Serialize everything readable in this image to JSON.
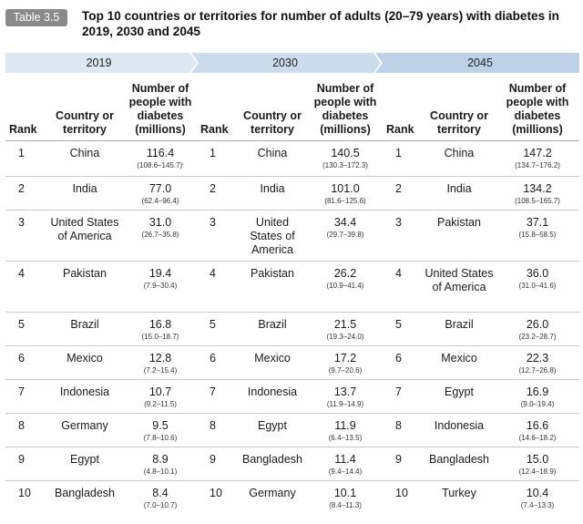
{
  "table_tag": "Table 3.5",
  "title": "Top 10 countries or territories for number of adults (20–79 years) with diabetes in 2019, 2030 and 2045",
  "colors": {
    "band_1": "#dde8f2",
    "band_2": "#cddcec",
    "band_3": "#bdd1e7",
    "tag_bg": "#8a8a8a"
  },
  "years": [
    "2019",
    "2030",
    "2045"
  ],
  "headers": {
    "rank": "Rank",
    "country": "Country or territory",
    "number": "Number of people with diabetes (millions)"
  },
  "rows": [
    {
      "rank": "1",
      "c2019": "China",
      "v2019": "116.4",
      "ci2019": "(108.6–145.7)ⁱ",
      "c2030": "China",
      "v2030": "140.5",
      "ci2030": "(130.3–172.3)",
      "c2045": "China",
      "v2045": "147.2",
      "ci2045": "(134.7–176.2)"
    },
    {
      "rank": "2",
      "c2019": "India",
      "v2019": "77.0",
      "ci2019": "(62.4–96.4)",
      "c2030": "India",
      "v2030": "101.0",
      "ci2030": "(81.6–125.6)",
      "c2045": "India",
      "v2045": "134.2",
      "ci2045": "(108.5–165.7)"
    },
    {
      "rank": "3",
      "c2019": "United States of America",
      "v2019": "31.0",
      "ci2019": "(26.7–35.8)",
      "c2030": "United States of America",
      "v2030": "34.4",
      "ci2030": "(29.7–39.8)",
      "c2045": "Pakistan",
      "v2045": "37.1",
      "ci2045": "(15.8–58.5)"
    },
    {
      "rank": "4",
      "c2019": "Pakistan",
      "v2019": "19.4",
      "ci2019": "(7.9–30.4)",
      "c2030": "Pakistan",
      "v2030": "26.2",
      "ci2030": "(10.9–41.4)",
      "c2045": "United States of America",
      "v2045": "36.0",
      "ci2045": "(31.0–41.6)"
    },
    {
      "rank": "5",
      "c2019": "Brazil",
      "v2019": "16.8",
      "ci2019": "(15.0–18.7)",
      "c2030": "Brazil",
      "v2030": "21.5",
      "ci2030": "(19.3–24.0)",
      "c2045": "Brazil",
      "v2045": "26.0",
      "ci2045": "(23.2–28.7)"
    },
    {
      "rank": "6",
      "c2019": "Mexico",
      "v2019": "12.8",
      "ci2019": "(7.2–15.4)",
      "c2030": "Mexico",
      "v2030": "17.2",
      "ci2030": "(9.7–20.6)",
      "c2045": "Mexico",
      "v2045": "22.3",
      "ci2045": "(12.7–26.8)"
    },
    {
      "rank": "7",
      "c2019": "Indonesia",
      "v2019": "10.7",
      "ci2019": "(9.2–11.5)",
      "c2030": "Indonesia",
      "v2030": "13.7",
      "ci2030": "(11.9–14.9)",
      "c2045": "Egypt",
      "v2045": "16.9",
      "ci2045": "(9.0–19.4)"
    },
    {
      "rank": "8",
      "c2019": "Germany",
      "v2019": "9.5",
      "ci2019": "(7.8–10.6)",
      "c2030": "Egypt",
      "v2030": "11.9",
      "ci2030": "(6.4–13.5)",
      "c2045": "Indonesia",
      "v2045": "16.6",
      "ci2045": "(14.6–18.2)"
    },
    {
      "rank": "9",
      "c2019": "Egypt",
      "v2019": "8.9",
      "ci2019": "(4.8–10.1)",
      "c2030": "Bangladesh",
      "v2030": "11.4",
      "ci2030": "(9.4–14.4)",
      "c2045": "Bangladesh",
      "v2045": "15.0",
      "ci2045": "(12.4–18.9)"
    },
    {
      "rank": "10",
      "c2019": "Bangladesh",
      "v2019": "8.4",
      "ci2019": "(7.0–10.7)",
      "c2030": "Germany",
      "v2030": "10.1",
      "ci2030": "(8.4–11.3)",
      "c2045": "Turkey",
      "v2045": "10.4",
      "ci2045": "(7.4–13.3)"
    }
  ]
}
